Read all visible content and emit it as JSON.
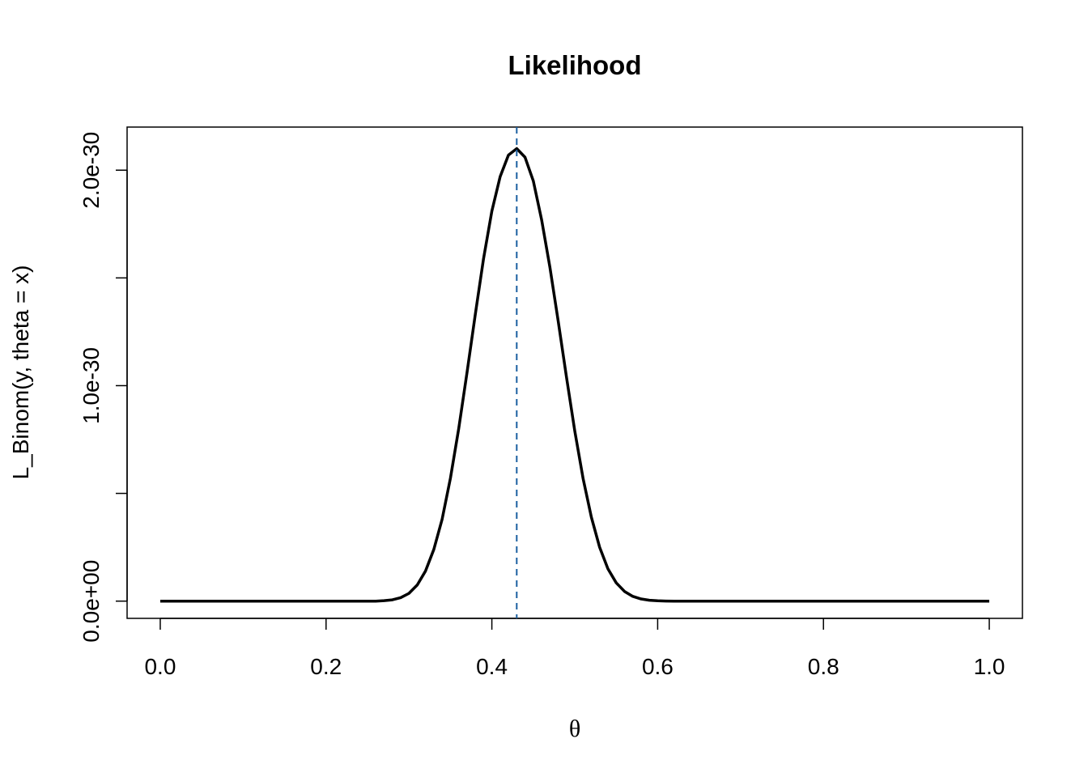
{
  "chart_data": {
    "type": "line",
    "title": "Likelihood",
    "xlabel": "θ",
    "ylabel": "L_Binom(y, theta = x)",
    "xlim": [
      -0.04,
      1.04
    ],
    "ylim": [
      -8e-32,
      2.2e-30
    ],
    "x_ticks": [
      0.0,
      0.2,
      0.4,
      0.6,
      0.8,
      1.0
    ],
    "x_tick_labels": [
      "0.0",
      "0.2",
      "0.4",
      "0.6",
      "0.8",
      "1.0"
    ],
    "y_ticks": [
      0.0,
      5e-31,
      1e-30,
      1.5e-30,
      2e-30
    ],
    "y_tick_labels": [
      "0.0e+00",
      "",
      "1.0e-30",
      "",
      "2.0e-30"
    ],
    "grid": false,
    "series": [
      {
        "color": "#000000",
        "x": [
          0.0,
          0.1,
          0.2,
          0.26,
          0.27,
          0.28,
          0.29,
          0.3,
          0.31,
          0.32,
          0.33,
          0.34,
          0.35,
          0.36,
          0.37,
          0.38,
          0.39,
          0.4,
          0.41,
          0.42,
          0.43,
          0.44,
          0.45,
          0.46,
          0.47,
          0.48,
          0.49,
          0.5,
          0.51,
          0.52,
          0.53,
          0.54,
          0.55,
          0.56,
          0.57,
          0.58,
          0.59,
          0.6,
          0.61,
          0.62,
          0.7,
          0.8,
          0.9,
          1.0
        ],
        "y": [
          0.0,
          0.0,
          0.0,
          0.0,
          2e-33,
          6e-33,
          1.6e-32,
          3.6e-32,
          7.5e-32,
          1.4e-31,
          2.4e-31,
          3.8e-31,
          5.7e-31,
          8e-31,
          1.06e-30,
          1.33e-30,
          1.59e-30,
          1.81e-30,
          1.97e-30,
          2.07e-30,
          2.1e-30,
          2.06e-30,
          1.95e-30,
          1.77e-30,
          1.55e-30,
          1.3e-30,
          1.04e-30,
          7.9e-31,
          5.7e-31,
          3.9e-31,
          2.5e-31,
          1.5e-31,
          8.5e-32,
          4.5e-32,
          2.2e-32,
          1e-32,
          4e-33,
          1.5e-33,
          4e-34,
          0.0,
          0.0,
          0.0,
          0.0,
          0.0
        ]
      }
    ],
    "vline": {
      "x": 0.43,
      "color": "#1a5fa0",
      "style": "dashed"
    }
  }
}
